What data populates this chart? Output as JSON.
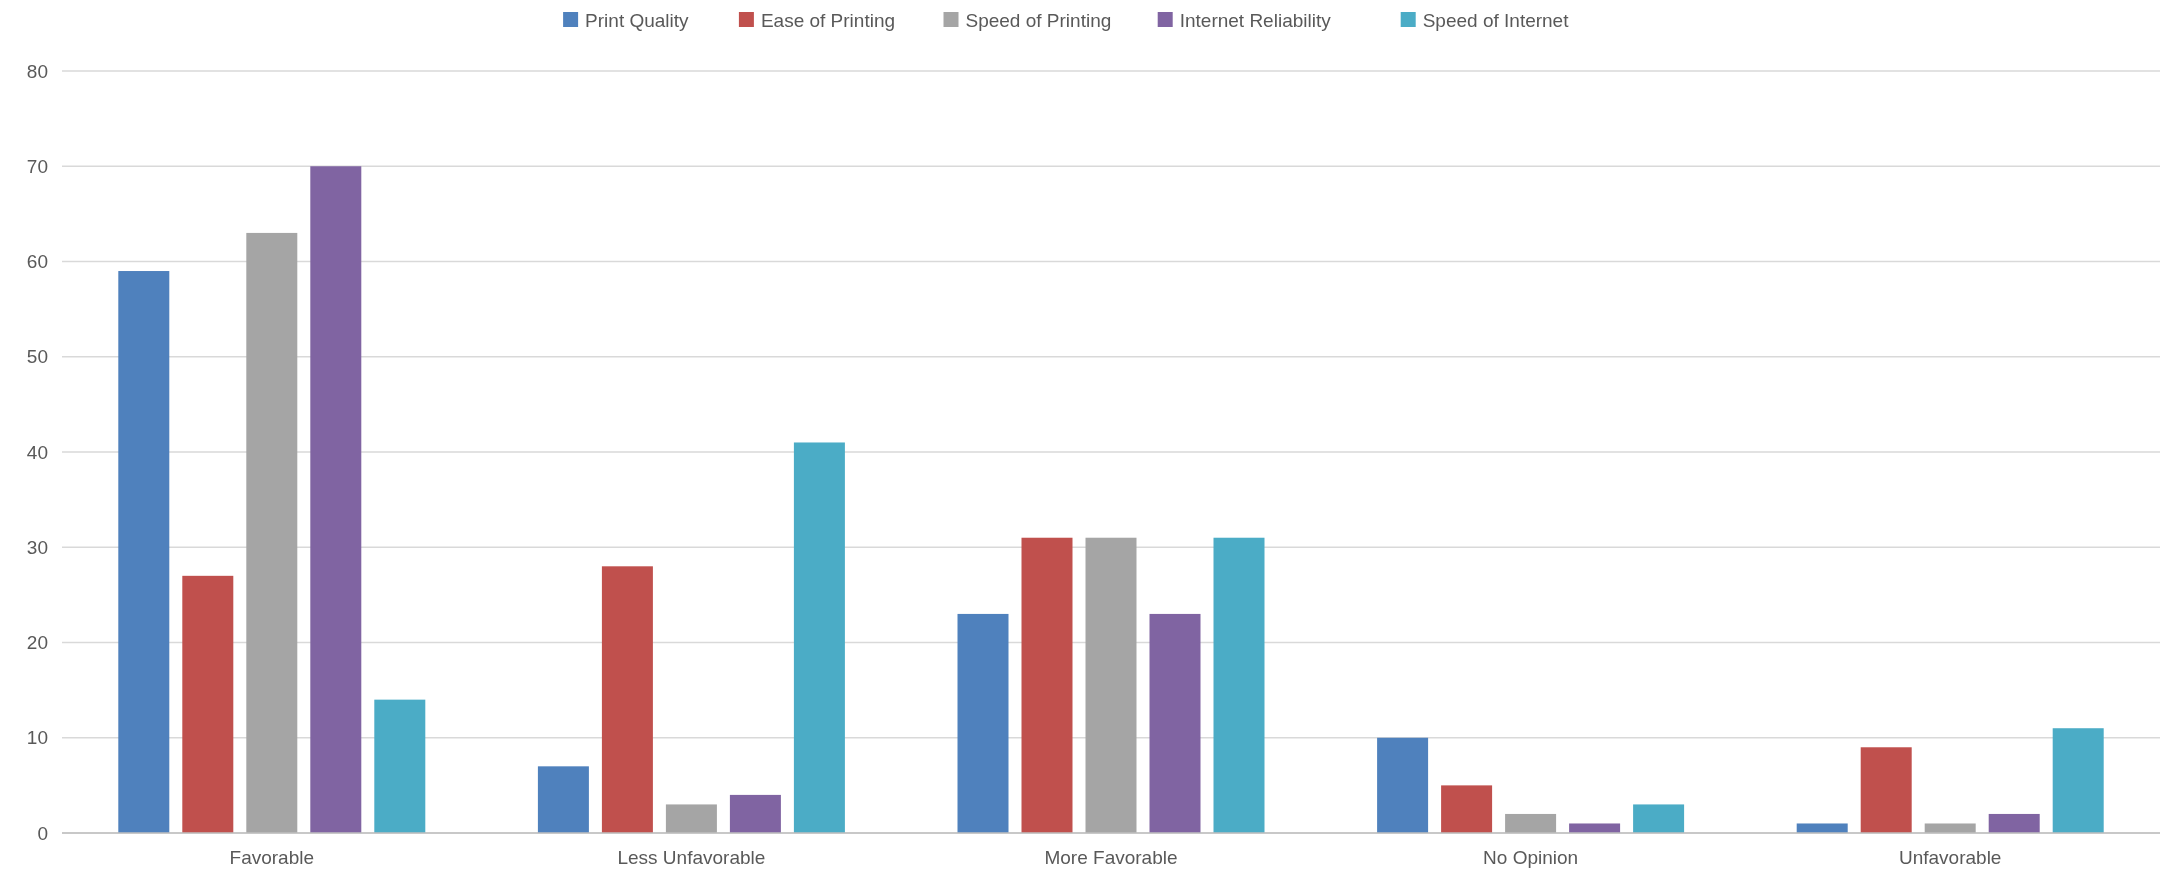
{
  "chart_data": {
    "type": "bar",
    "categories": [
      "Favorable",
      "Less Unfavorable",
      "More Favorable",
      "No Opinion",
      "Unfavorable"
    ],
    "series": [
      {
        "name": "Print Quality",
        "color": "#4f81bd",
        "values": [
          59,
          7,
          23,
          10,
          1
        ]
      },
      {
        "name": "Ease of Printing",
        "color": "#c0504d",
        "values": [
          27,
          28,
          31,
          5,
          9
        ]
      },
      {
        "name": "Speed of Printing",
        "color": "#a5a5a5",
        "values": [
          63,
          3,
          31,
          2,
          1
        ]
      },
      {
        "name": "Internet Reliability",
        "color": "#8064a2",
        "values": [
          70,
          4,
          23,
          1,
          2
        ]
      },
      {
        "name": "Speed of Internet",
        "color": "#4bacc6",
        "values": [
          14,
          41,
          31,
          3,
          11
        ]
      }
    ],
    "ylim": [
      0,
      80
    ],
    "yticks": [
      0,
      10,
      20,
      30,
      40,
      50,
      60,
      70,
      80
    ],
    "grid": "y",
    "legend": "top"
  }
}
